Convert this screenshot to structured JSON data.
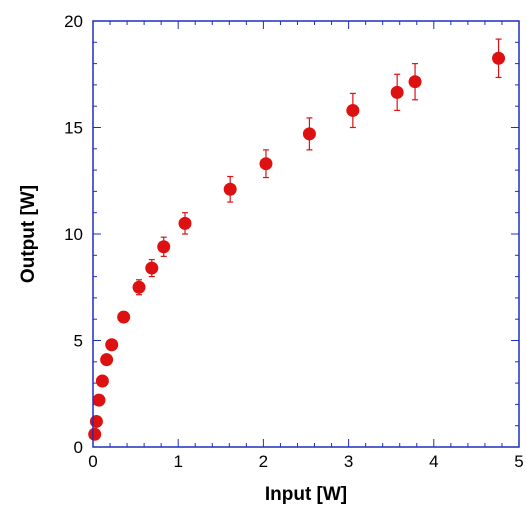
{
  "chart_data": {
    "type": "scatter",
    "xlabel": "Input [W]",
    "ylabel": "Output [W]",
    "xlim": [
      0,
      5
    ],
    "ylim": [
      0,
      20
    ],
    "xticks": [
      0,
      1,
      2,
      3,
      4,
      5
    ],
    "yticks": [
      0,
      5,
      10,
      15,
      20
    ],
    "grid": false,
    "colors": {
      "axis": "#1f2fbf",
      "marker": "#dd1111"
    },
    "series": [
      {
        "points": [
          {
            "x": 0.02,
            "y": 0.6,
            "err": 0.15
          },
          {
            "x": 0.04,
            "y": 1.2,
            "err": 0.15
          },
          {
            "x": 0.07,
            "y": 2.2,
            "err": 0.15
          },
          {
            "x": 0.11,
            "y": 3.1,
            "err": 0.2
          },
          {
            "x": 0.16,
            "y": 4.1,
            "err": 0.2
          },
          {
            "x": 0.22,
            "y": 4.8,
            "err": 0.2
          },
          {
            "x": 0.36,
            "y": 6.1,
            "err": 0.25
          },
          {
            "x": 0.54,
            "y": 7.5,
            "err": 0.35
          },
          {
            "x": 0.69,
            "y": 8.4,
            "err": 0.4
          },
          {
            "x": 0.83,
            "y": 9.4,
            "err": 0.45
          },
          {
            "x": 1.08,
            "y": 10.5,
            "err": 0.5
          },
          {
            "x": 1.61,
            "y": 12.1,
            "err": 0.6
          },
          {
            "x": 2.03,
            "y": 13.3,
            "err": 0.65
          },
          {
            "x": 2.54,
            "y": 14.7,
            "err": 0.75
          },
          {
            "x": 3.05,
            "y": 15.8,
            "err": 0.8
          },
          {
            "x": 3.57,
            "y": 16.65,
            "err": 0.85
          },
          {
            "x": 3.78,
            "y": 17.15,
            "err": 0.85
          },
          {
            "x": 4.76,
            "y": 18.25,
            "err": 0.9
          }
        ]
      }
    ]
  }
}
